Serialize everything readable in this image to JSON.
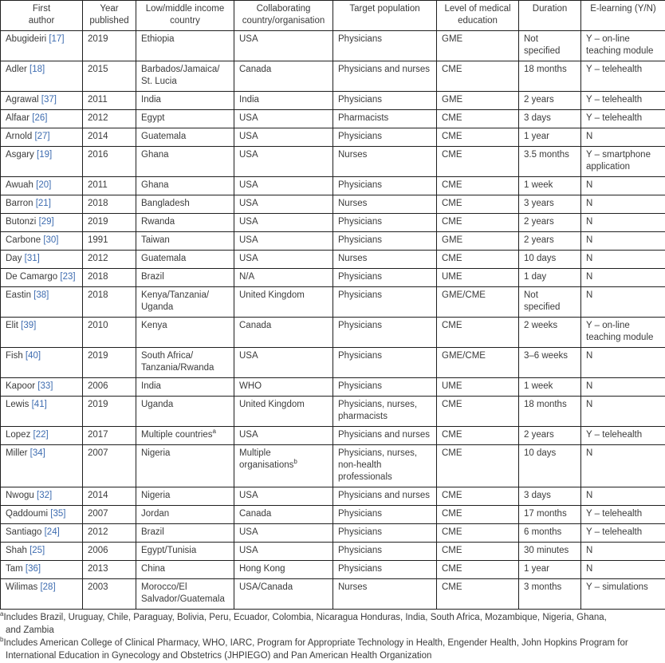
{
  "table": {
    "columns": [
      {
        "label": "First\nauthor"
      },
      {
        "label": "Year\npublished"
      },
      {
        "label": "Low/middle income\ncountry"
      },
      {
        "label": "Collaborating\ncountry/organisation"
      },
      {
        "label": "Target population"
      },
      {
        "label": "Level of medical\neducation"
      },
      {
        "label": "Duration"
      },
      {
        "label": "E-learning (Y/N)"
      }
    ],
    "rows": [
      {
        "author": "Abugideiri",
        "ref": "17",
        "year": "2019",
        "country": "Ethiopia",
        "collaborator": "USA",
        "target": "Physicians",
        "level": "GME",
        "duration": "Not specified",
        "elearning": "Y – on-line\nteaching module"
      },
      {
        "author": "Adler",
        "ref": "18",
        "year": "2015",
        "country": "Barbados/Jamaica/\nSt. Lucia",
        "collaborator": "Canada",
        "target": "Physicians and nurses",
        "level": "CME",
        "duration": "18 months",
        "elearning": "Y – telehealth"
      },
      {
        "author": "Agrawal",
        "ref": "37",
        "year": "2011",
        "country": "India",
        "collaborator": "India",
        "target": "Physicians",
        "level": "GME",
        "duration": "2 years",
        "elearning": "Y – telehealth"
      },
      {
        "author": "Alfaar",
        "ref": "26",
        "year": "2012",
        "country": "Egypt",
        "collaborator": "USA",
        "target": "Pharmacists",
        "level": "CME",
        "duration": "3 days",
        "elearning": "Y – telehealth"
      },
      {
        "author": "Arnold",
        "ref": "27",
        "year": "2014",
        "country": "Guatemala",
        "collaborator": "USA",
        "target": "Physicians",
        "level": "CME",
        "duration": "1 year",
        "elearning": "N"
      },
      {
        "author": "Asgary",
        "ref": "19",
        "year": "2016",
        "country": "Ghana",
        "collaborator": "USA",
        "target": "Nurses",
        "level": "CME",
        "duration": "3.5 months",
        "elearning": "Y – smartphone\napplication"
      },
      {
        "author": "Awuah",
        "ref": "20",
        "year": "2011",
        "country": "Ghana",
        "collaborator": "USA",
        "target": "Physicians",
        "level": "CME",
        "duration": "1 week",
        "elearning": "N"
      },
      {
        "author": "Barron",
        "ref": "21",
        "year": "2018",
        "country": "Bangladesh",
        "collaborator": "USA",
        "target": "Nurses",
        "level": "CME",
        "duration": "3 years",
        "elearning": "N"
      },
      {
        "author": "Butonzi",
        "ref": "29",
        "year": "2019",
        "country": "Rwanda",
        "collaborator": "USA",
        "target": "Physicians",
        "level": "CME",
        "duration": "2 years",
        "elearning": "N"
      },
      {
        "author": "Carbone",
        "ref": "30",
        "year": "1991",
        "country": "Taiwan",
        "collaborator": "USA",
        "target": "Physicians",
        "level": "GME",
        "duration": "2 years",
        "elearning": "N"
      },
      {
        "author": "Day",
        "ref": "31",
        "year": "2012",
        "country": "Guatemala",
        "collaborator": "USA",
        "target": "Nurses",
        "level": "CME",
        "duration": "10 days",
        "elearning": "N"
      },
      {
        "author": "De Camargo",
        "ref": "23",
        "year": "2018",
        "country": "Brazil",
        "collaborator": "N/A",
        "target": "Physicians",
        "level": "UME",
        "duration": "1 day",
        "elearning": "N"
      },
      {
        "author": "Eastin",
        "ref": "38",
        "year": "2018",
        "country": "Kenya/Tanzania/\nUganda",
        "collaborator": "United Kingdom",
        "target": "Physicians",
        "level": "GME/CME",
        "duration": "Not specified",
        "elearning": "N"
      },
      {
        "author": "Elit",
        "ref": "39",
        "year": "2010",
        "country": "Kenya",
        "collaborator": "Canada",
        "target": "Physicians",
        "level": "CME",
        "duration": "2 weeks",
        "elearning": "Y – on-line\nteaching module"
      },
      {
        "author": "Fish",
        "ref": "40",
        "year": "2019",
        "country": "South Africa/\nTanzania/Rwanda",
        "collaborator": "USA",
        "target": "Physicians",
        "level": "GME/CME",
        "duration": "3–6 weeks",
        "elearning": "N"
      },
      {
        "author": "Kapoor",
        "ref": "33",
        "year": "2006",
        "country": "India",
        "collaborator": "WHO",
        "target": "Physicians",
        "level": "UME",
        "duration": "1 week",
        "elearning": "N"
      },
      {
        "author": "Lewis",
        "ref": "41",
        "year": "2019",
        "country": "Uganda",
        "collaborator": "United Kingdom",
        "target": "Physicians, nurses,\npharmacists",
        "level": "CME",
        "duration": "18 months",
        "elearning": "N"
      },
      {
        "author": "Lopez",
        "ref": "22",
        "year": "2017",
        "country": "Multiple countries",
        "country_sup": "a",
        "collaborator": "USA",
        "target": "Physicians and nurses",
        "level": "CME",
        "duration": "2 years",
        "elearning": "Y – telehealth"
      },
      {
        "author": "Miller",
        "ref": "34",
        "year": "2007",
        "country": "Nigeria",
        "collaborator": "Multiple\norganisations",
        "collaborator_sup": "b",
        "target": "Physicians, nurses,\nnon-health\nprofessionals",
        "level": "CME",
        "duration": "10 days",
        "elearning": "N"
      },
      {
        "author": "Nwogu",
        "ref": "32",
        "year": "2014",
        "country": "Nigeria",
        "collaborator": "USA",
        "target": "Physicians and nurses",
        "level": "CME",
        "duration": "3 days",
        "elearning": "N"
      },
      {
        "author": "Qaddoumi",
        "ref": "35",
        "year": "2007",
        "country": "Jordan",
        "collaborator": "Canada",
        "target": "Physicians",
        "level": "CME",
        "duration": "17 months",
        "elearning": "Y – telehealth"
      },
      {
        "author": "Santiago",
        "ref": "24",
        "year": "2012",
        "country": "Brazil",
        "collaborator": "USA",
        "target": "Physicians",
        "level": "CME",
        "duration": "6 months",
        "elearning": "Y – telehealth"
      },
      {
        "author": "Shah",
        "ref": "25",
        "year": "2006",
        "country": "Egypt/Tunisia",
        "collaborator": "USA",
        "target": "Physicians",
        "level": "CME",
        "duration": "30 minutes",
        "elearning": "N"
      },
      {
        "author": "Tam",
        "ref": "36",
        "year": "2013",
        "country": "China",
        "collaborator": "Hong Kong",
        "target": "Physicians",
        "level": "CME",
        "duration": "1 year",
        "elearning": "N"
      },
      {
        "author": "Wilimas",
        "ref": "28",
        "year": "2003",
        "country": "Morocco/El\nSalvador/Guatemala",
        "collaborator": "USA/Canada",
        "target": "Nurses",
        "level": "CME",
        "duration": "3 months",
        "elearning": "Y – simulations"
      }
    ]
  },
  "footnotes": [
    {
      "marker": "a",
      "text": "Includes Brazil, Uruguay, Chile, Paraguay, Bolivia, Peru, Ecuador, Colombia, Nicaragua Honduras, India, South Africa, Mozambique, Nigeria, Ghana,\nand Zambia"
    },
    {
      "marker": "b",
      "text": "Includes American College of Clinical Pharmacy, WHO, IARC, Program for Appropriate Technology in Health, Engender Health, John Hopkins Program for\nInternational Education in Gynecology and Obstetrics (JHPIEGO) and Pan American Health Organization"
    }
  ],
  "colors": {
    "text": "#3b3b3b",
    "link": "#3e6cb0",
    "border": "#1f1f1f",
    "background": "#ffffff"
  }
}
